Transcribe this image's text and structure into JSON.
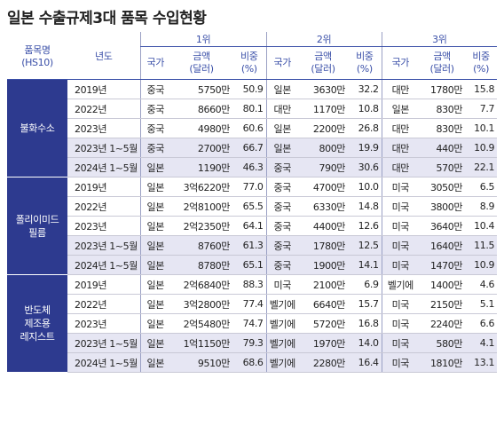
{
  "title": "일본 수출규제3대 품목 수입현황",
  "table": {
    "header": {
      "product": [
        "품목명",
        "(HS10)"
      ],
      "year": "년도",
      "ranks": [
        "1위",
        "2위",
        "3위"
      ],
      "sub": {
        "country": "국가",
        "amount": [
          "금액",
          "(달러)"
        ],
        "share": [
          "비중",
          "(%)"
        ]
      }
    },
    "groups": [
      {
        "name": [
          "불화수소"
        ],
        "rows": [
          [
            "2019년",
            "중국",
            "5750만",
            "50.9",
            "일본",
            "3630만",
            "32.2",
            "대만",
            "1780만",
            "15.8"
          ],
          [
            "2022년",
            "중국",
            "8660만",
            "80.1",
            "대만",
            "1170만",
            "10.8",
            "일본",
            "830만",
            "7.7"
          ],
          [
            "2023년",
            "중국",
            "4980만",
            "60.6",
            "일본",
            "2200만",
            "26.8",
            "대만",
            "830만",
            "10.1"
          ],
          [
            "2023년 1~5월",
            "중국",
            "2700만",
            "66.7",
            "일본",
            "800만",
            "19.9",
            "대만",
            "440만",
            "10.9"
          ],
          [
            "2024년 1~5월",
            "일본",
            "1190만",
            "46.3",
            "중국",
            "790만",
            "30.6",
            "대만",
            "570만",
            "22.1"
          ]
        ]
      },
      {
        "name": [
          "폴리이미드",
          "필름"
        ],
        "rows": [
          [
            "2019년",
            "일본",
            "3억6220만",
            "77.0",
            "중국",
            "4700만",
            "10.0",
            "미국",
            "3050만",
            "6.5"
          ],
          [
            "2022년",
            "일본",
            "2억8100만",
            "65.5",
            "중국",
            "6330만",
            "14.8",
            "미국",
            "3800만",
            "8.9"
          ],
          [
            "2023년",
            "일본",
            "2억2350만",
            "64.1",
            "중국",
            "4400만",
            "12.6",
            "미국",
            "3640만",
            "10.4"
          ],
          [
            "2023년 1~5월",
            "일본",
            "8760만",
            "61.3",
            "중국",
            "1780만",
            "12.5",
            "미국",
            "1640만",
            "11.5"
          ],
          [
            "2024년 1~5월",
            "일본",
            "8780만",
            "65.1",
            "중국",
            "1900만",
            "14.1",
            "미국",
            "1470만",
            "10.9"
          ]
        ]
      },
      {
        "name": [
          "반도체",
          "제조용",
          "레지스트"
        ],
        "rows": [
          [
            "2019년",
            "일본",
            "2억6840만",
            "88.3",
            "미국",
            "2100만",
            "6.9",
            "벨기에",
            "1400만",
            "4.6"
          ],
          [
            "2022년",
            "일본",
            "3억2800만",
            "77.4",
            "벨기에",
            "6640만",
            "15.7",
            "미국",
            "2150만",
            "5.1"
          ],
          [
            "2023년",
            "일본",
            "2억5480만",
            "74.7",
            "벨기에",
            "5720만",
            "16.8",
            "미국",
            "2240만",
            "6.6"
          ],
          [
            "2023년 1~5월",
            "일본",
            "1억1150만",
            "79.3",
            "벨기에",
            "1970만",
            "14.0",
            "미국",
            "580만",
            "4.1"
          ],
          [
            "2024년 1~5월",
            "일본",
            "9510만",
            "68.6",
            "벨기에",
            "2280만",
            "16.4",
            "미국",
            "1810만",
            "13.1"
          ]
        ]
      }
    ]
  }
}
